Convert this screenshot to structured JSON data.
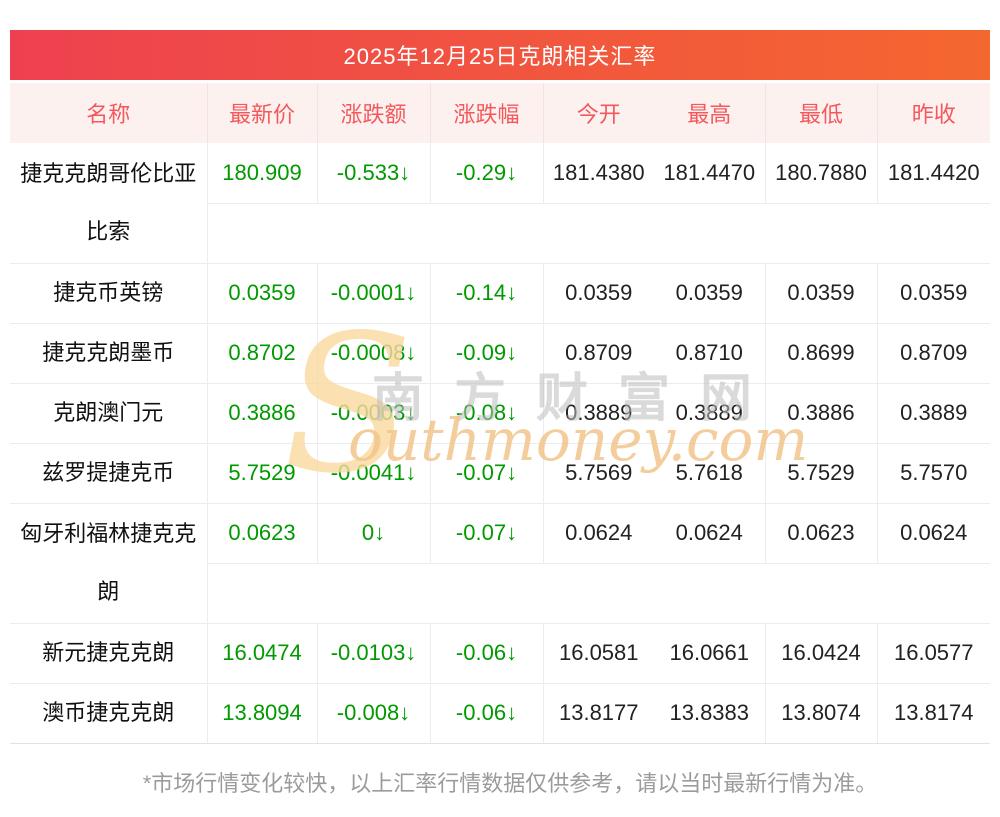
{
  "banner": {
    "title": "2025年12月25日克朗相关汇率"
  },
  "table": {
    "columns": [
      {
        "key": "name",
        "label": "名称"
      },
      {
        "key": "latest",
        "label": "最新价"
      },
      {
        "key": "change",
        "label": "涨跌额"
      },
      {
        "key": "change_pct",
        "label": "涨跌幅"
      },
      {
        "key": "open",
        "label": "今开"
      },
      {
        "key": "high",
        "label": "最高"
      },
      {
        "key": "low",
        "label": "最低"
      },
      {
        "key": "prev_close",
        "label": "昨收"
      }
    ],
    "rows": [
      {
        "name": "捷克克朗哥伦比亚比索",
        "two_line": true,
        "latest": "180.909",
        "change": "-0.533↓",
        "change_pct": "-0.29↓",
        "open": "181.4380",
        "high": "181.4470",
        "low": "180.7880",
        "prev_close": "181.4420"
      },
      {
        "name": "捷克币英镑",
        "two_line": false,
        "latest": "0.0359",
        "change": "-0.0001↓",
        "change_pct": "-0.14↓",
        "open": "0.0359",
        "high": "0.0359",
        "low": "0.0359",
        "prev_close": "0.0359"
      },
      {
        "name": "捷克克朗墨币",
        "two_line": false,
        "latest": "0.8702",
        "change": "-0.0008↓",
        "change_pct": "-0.09↓",
        "open": "0.8709",
        "high": "0.8710",
        "low": "0.8699",
        "prev_close": "0.8709"
      },
      {
        "name": "克朗澳门元",
        "two_line": false,
        "latest": "0.3886",
        "change": "-0.0003↓",
        "change_pct": "-0.08↓",
        "open": "0.3889",
        "high": "0.3889",
        "low": "0.3886",
        "prev_close": "0.3889"
      },
      {
        "name": "兹罗提捷克币",
        "two_line": false,
        "latest": "5.7529",
        "change": "-0.0041↓",
        "change_pct": "-0.07↓",
        "open": "5.7569",
        "high": "5.7618",
        "low": "5.7529",
        "prev_close": "5.7570"
      },
      {
        "name": "匈牙利福林捷克克朗",
        "two_line": true,
        "latest": "0.0623",
        "change": "0↓",
        "change_pct": "-0.07↓",
        "open": "0.0624",
        "high": "0.0624",
        "low": "0.0623",
        "prev_close": "0.0624"
      },
      {
        "name": "新元捷克克朗",
        "two_line": false,
        "latest": "16.0474",
        "change": "-0.0103↓",
        "change_pct": "-0.06↓",
        "open": "16.0581",
        "high": "16.0661",
        "low": "16.0424",
        "prev_close": "16.0577"
      },
      {
        "name": "澳币捷克克朗",
        "two_line": false,
        "latest": "13.8094",
        "change": "-0.008↓",
        "change_pct": "-0.06↓",
        "open": "13.8177",
        "high": "13.8383",
        "low": "13.8074",
        "prev_close": "13.8174"
      }
    ]
  },
  "watermark": {
    "s_glyph": "S",
    "cn_text": "南方财富网",
    "en_text": "outhmoney.com"
  },
  "footer": {
    "disclaimer": "*市场行情变化较快，以上汇率行情数据仅供参考，请以当时最新行情为准。"
  },
  "colors": {
    "banner_start": "#ee4150",
    "banner_end": "#f4672f",
    "header_bg": "#fdf1f0",
    "header_text": "#f4585c",
    "green": "#009900",
    "text_dark": "#222222",
    "border": "#e8edf3",
    "footer_text": "#9b9b9b"
  }
}
